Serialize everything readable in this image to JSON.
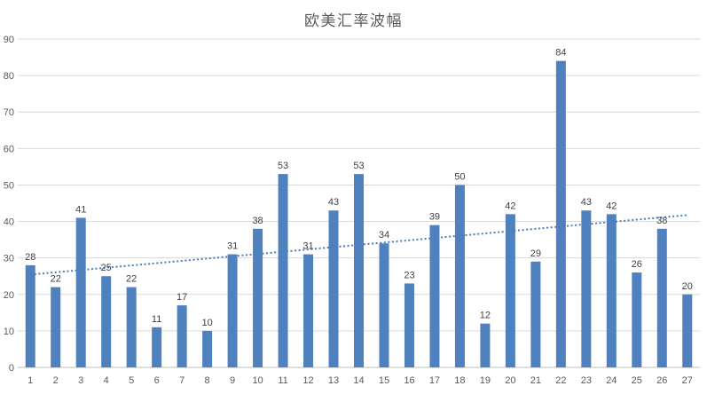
{
  "title": "欧美汇率波幅",
  "colors": {
    "bar_fill": "#4E81BD",
    "trendline": "#4A7EBB",
    "gridline": "#D9D9D9",
    "axis_line": "#BFBFBF",
    "value_label": "#404040",
    "tick_label": "#595959",
    "title_text": "#595959",
    "background": "#FFFFFF"
  },
  "chart_data": {
    "type": "bar",
    "title": "欧美汇率波幅",
    "categories": [
      "1",
      "2",
      "3",
      "4",
      "5",
      "6",
      "7",
      "8",
      "9",
      "10",
      "11",
      "12",
      "13",
      "14",
      "15",
      "16",
      "17",
      "18",
      "19",
      "20",
      "21",
      "22",
      "23",
      "24",
      "25",
      "26",
      "27"
    ],
    "values": [
      28,
      22,
      41,
      25,
      22,
      11,
      17,
      10,
      31,
      38,
      53,
      31,
      43,
      53,
      34,
      23,
      39,
      50,
      12,
      42,
      29,
      84,
      43,
      42,
      26,
      38,
      20
    ],
    "data_labels": [
      28,
      22,
      41,
      25,
      22,
      11,
      17,
      10,
      31,
      38,
      53,
      31,
      43,
      53,
      34,
      23,
      39,
      50,
      12,
      42,
      29,
      84,
      43,
      42,
      26,
      38,
      20
    ],
    "xlabel": "",
    "ylabel": "",
    "y_ticks": [
      0,
      10,
      20,
      30,
      40,
      50,
      60,
      70,
      80,
      90
    ],
    "ylim": [
      0,
      90
    ],
    "grid": "horizontal",
    "legend": "none",
    "trendline": {
      "kind": "linear",
      "style": "dotted"
    }
  }
}
